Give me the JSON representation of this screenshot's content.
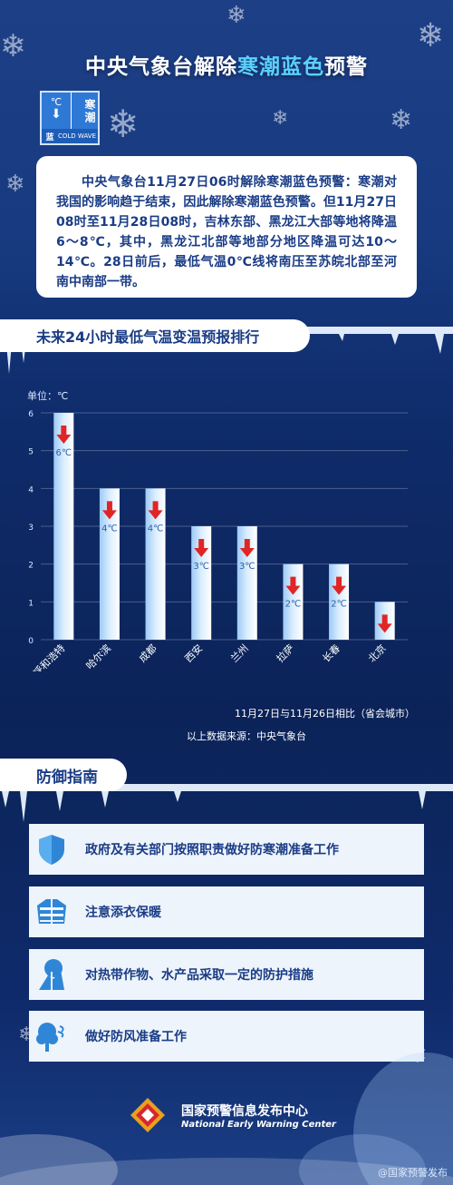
{
  "title": {
    "part1": "中央气象台解除",
    "highlight": "寒潮蓝色",
    "part2": "预警"
  },
  "badge": {
    "unit": "℃",
    "type_label": "寒潮",
    "level": "蓝",
    "en": "COLD WAVE"
  },
  "notice": "中央气象台11月27日06时解除寒潮蓝色预警：寒潮对我国的影响趋于结束，因此解除寒潮蓝色预警。但11月27日08时至11月28日08时，吉林东部、黑龙江大部等地将降温6～8℃，其中，黑龙江北部等地部分地区降温可达10～14℃。28日前后，最低气温0℃线将南压至苏皖北部至河南中南部一带。",
  "section_forecast": "未来24小时最低气温变温预报排行",
  "chart_data": {
    "type": "bar",
    "unit_label": "单位：℃",
    "categories": [
      "呼和浩特",
      "哈尔滨",
      "成都",
      "西安",
      "兰州",
      "拉萨",
      "长春",
      "北京"
    ],
    "values": [
      6,
      4,
      4,
      3,
      3,
      2,
      2,
      1
    ],
    "value_labels": [
      "6℃",
      "4℃",
      "4℃",
      "3℃",
      "3℃",
      "2℃",
      "2℃",
      ""
    ],
    "ylim": [
      0,
      6
    ],
    "yticks": [
      0,
      1,
      2,
      3,
      4,
      5,
      6
    ],
    "grid": true,
    "bar_color": "#dbeeff",
    "arrow_color": "#e02525"
  },
  "compare_note": "11月27日与11月26日相比（省会城市）",
  "source_note": "以上数据来源：中央气象台",
  "section_guide": "防御指南",
  "guides": [
    {
      "icon": "shield-icon",
      "text": "政府及有关部门按照职责做好防寒潮准备工作"
    },
    {
      "icon": "clothing-icon",
      "text": "注意添衣保暖"
    },
    {
      "icon": "crop-protection-icon",
      "text": "对热带作物、水产品采取一定的防护措施"
    },
    {
      "icon": "wind-tree-icon",
      "text": "做好防风准备工作"
    }
  ],
  "footer": {
    "cn": "国家预警信息发布中心",
    "en": "National Early Warning Center"
  },
  "watermark": "@国家预警发布",
  "colors": {
    "accent": "#5ad1ff",
    "navy": "#1a3c86",
    "alert_red": "#e02525"
  }
}
